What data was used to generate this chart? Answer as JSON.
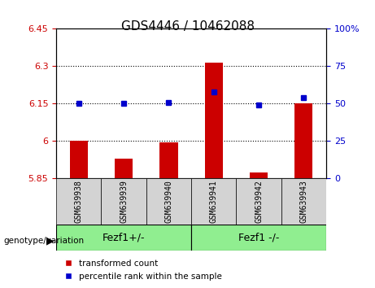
{
  "title": "GDS4446 / 10462088",
  "samples": [
    "GSM639938",
    "GSM639939",
    "GSM639940",
    "GSM639941",
    "GSM639942",
    "GSM639943"
  ],
  "red_values": [
    6.0,
    5.93,
    5.995,
    6.315,
    5.875,
    6.15
  ],
  "blue_values": [
    50,
    50,
    51,
    58,
    49,
    54
  ],
  "ylim_left": [
    5.85,
    6.45
  ],
  "ylim_right": [
    0,
    100
  ],
  "yticks_left": [
    5.85,
    6.0,
    6.15,
    6.3,
    6.45
  ],
  "yticks_right": [
    0,
    25,
    50,
    75,
    100
  ],
  "ytick_labels_left": [
    "5.85",
    "6",
    "6.15",
    "6.3",
    "6.45"
  ],
  "ytick_labels_right": [
    "0",
    "25",
    "50",
    "75",
    "100%"
  ],
  "hlines": [
    6.0,
    6.15,
    6.3
  ],
  "group1_label": "Fezf1+/-",
  "group2_label": "Fezf1 -/-",
  "group1_indices": [
    0,
    1,
    2
  ],
  "group2_indices": [
    3,
    4,
    5
  ],
  "genotype_label": "genotype/variation",
  "legend_red": "transformed count",
  "legend_blue": "percentile rank within the sample",
  "bar_color": "#cc0000",
  "dot_color": "#0000cc",
  "group1_bg": "#90ee90",
  "group2_bg": "#90ee90",
  "xticklabel_bg": "#d3d3d3",
  "bar_width": 0.4
}
